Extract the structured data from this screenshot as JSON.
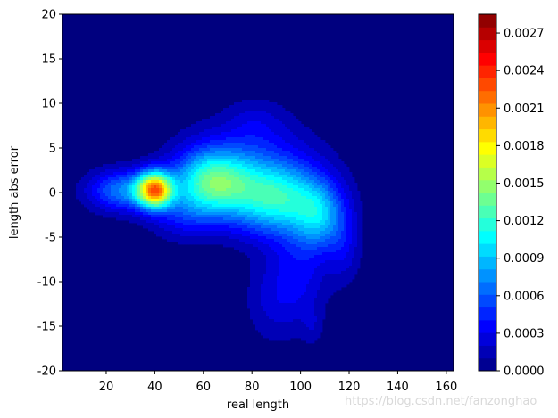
{
  "chart_data": {
    "type": "heatmap",
    "subtype": "filled-contour-kde",
    "title": "",
    "xlabel": "real length",
    "ylabel": "length abs error",
    "xlim": [
      2,
      163
    ],
    "ylim": [
      -20,
      20
    ],
    "xticks": [
      20,
      40,
      60,
      80,
      100,
      120,
      140,
      160
    ],
    "yticks": [
      -20,
      -15,
      -10,
      -5,
      0,
      5,
      10,
      15,
      20
    ],
    "colormap": "jet",
    "colorbar": {
      "range": [
        0,
        0.00285
      ],
      "levels": 28,
      "ticks": [
        "0.0000",
        "0.0003",
        "0.0006",
        "0.0009",
        "0.0012",
        "0.0015",
        "0.0018",
        "0.0021",
        "0.0024",
        "0.0027"
      ],
      "tick_values": [
        0,
        0.0003,
        0.0006,
        0.0009,
        0.0012,
        0.0015,
        0.0018,
        0.0021,
        0.0024,
        0.0027
      ]
    },
    "density_components": [
      {
        "x": 40,
        "y": 0.3,
        "sx": 5,
        "sy": 1.4,
        "weight": 0.00185
      },
      {
        "x": 27,
        "y": 0.2,
        "sx": 10,
        "sy": 1.6,
        "weight": 0.0007
      },
      {
        "x": 63,
        "y": 1.2,
        "sx": 11,
        "sy": 2.5,
        "weight": 0.0011
      },
      {
        "x": 90,
        "y": -0.8,
        "sx": 14,
        "sy": 2.8,
        "weight": 0.00105
      },
      {
        "x": 108,
        "y": -2.8,
        "sx": 7,
        "sy": 2.6,
        "weight": 0.0006
      },
      {
        "x": 80,
        "y": 3.5,
        "sx": 18,
        "sy": 3.5,
        "weight": 0.00035
      },
      {
        "x": 100,
        "y": -9,
        "sx": 8,
        "sy": 4,
        "weight": 0.0003
      },
      {
        "x": 88,
        "y": -12,
        "sx": 8,
        "sy": 3.5,
        "weight": 0.0002
      },
      {
        "x": 105,
        "y": -15,
        "sx": 3,
        "sy": 1.5,
        "weight": 0.00012
      },
      {
        "x": 82,
        "y": 8,
        "sx": 8,
        "sy": 1.8,
        "weight": 0.00014
      },
      {
        "x": 52,
        "y": -2.5,
        "sx": 10,
        "sy": 2,
        "weight": 0.0003
      },
      {
        "x": 118,
        "y": -6,
        "sx": 5,
        "sy": 3,
        "weight": 0.00025
      }
    ]
  },
  "watermark": "https://blog.csdn.net/fanzonghao",
  "colors": {
    "background_level": "#00007f",
    "axes_frame": "#000000",
    "figure_background": "#ffffff"
  }
}
